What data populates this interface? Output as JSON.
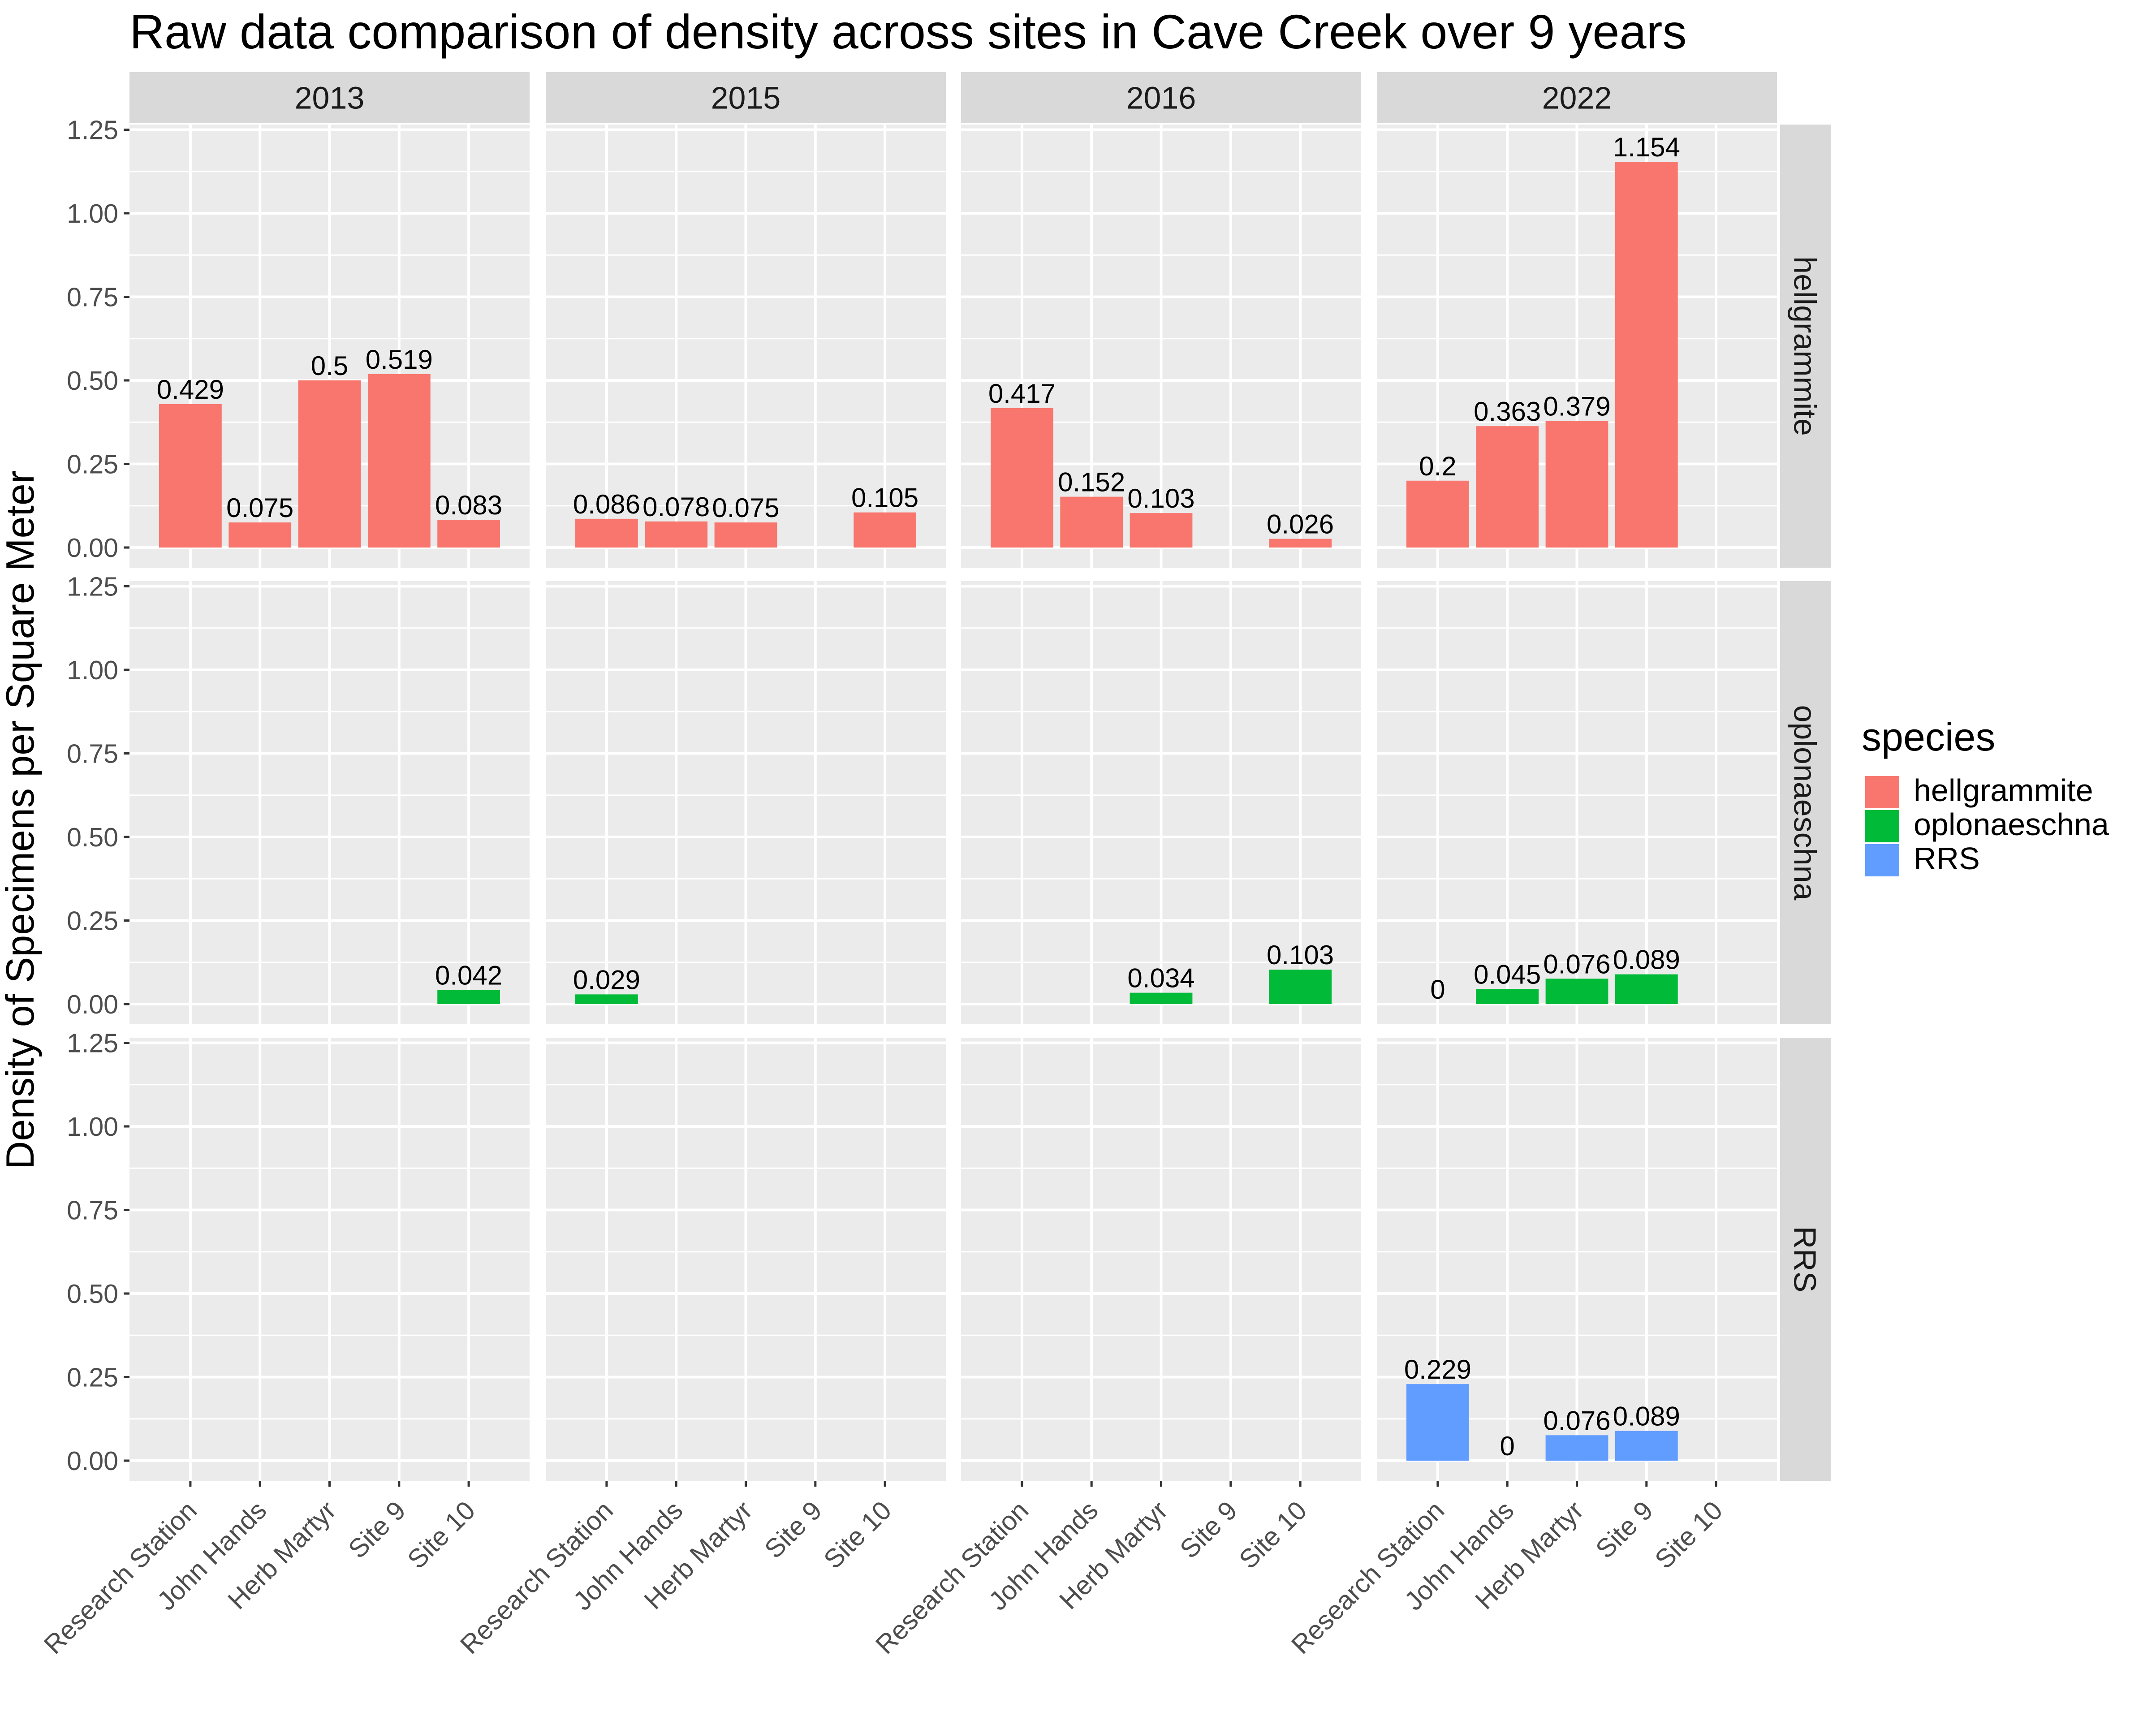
{
  "chart_data": {
    "type": "bar",
    "title": "Raw data comparison of density across sites in Cave Creek over 9 years",
    "xlabel": "",
    "ylabel": "Density of Specimens per Square Meter",
    "ylim": [
      -0.05,
      1.25
    ],
    "yticks": [
      0,
      0.25,
      0.5,
      0.75,
      1,
      1.25
    ],
    "ytick_labels": [
      "0.00",
      "0.25",
      "0.50",
      "0.75",
      "1.00",
      "1.25"
    ],
    "grid": true,
    "categories": [
      "Research Station",
      "John Hands",
      "Herb Martyr",
      "Site 9",
      "Site 10"
    ],
    "facet_columns": [
      "2013",
      "2015",
      "2016",
      "2022"
    ],
    "facet_rows": [
      "hellgrammite",
      "oplonaeschna",
      "RRS"
    ],
    "legend": {
      "title": "species",
      "position": "right",
      "entries": [
        "hellgrammite",
        "oplonaeschna",
        "RRS"
      ]
    },
    "colors": {
      "hellgrammite": "#F8766D",
      "oplonaeschna": "#00BA38",
      "RRS": "#619CFF",
      "panel_bg": "#EBEBEB",
      "strip_bg": "#D9D9D9",
      "grid": "#FFFFFF"
    },
    "series": [
      {
        "name": "hellgrammite",
        "data": [
          {
            "year": "2013",
            "site": "Research Station",
            "value": 0.429,
            "label": "0.429"
          },
          {
            "year": "2013",
            "site": "John Hands",
            "value": 0.075,
            "label": "0.075"
          },
          {
            "year": "2013",
            "site": "Herb Martyr",
            "value": 0.5,
            "label": "0.5"
          },
          {
            "year": "2013",
            "site": "Site 9",
            "value": 0.519,
            "label": "0.519"
          },
          {
            "year": "2013",
            "site": "Site 10",
            "value": 0.083,
            "label": "0.083"
          },
          {
            "year": "2015",
            "site": "Research Station",
            "value": 0.086,
            "label": "0.086"
          },
          {
            "year": "2015",
            "site": "John Hands",
            "value": 0.078,
            "label": "0.078"
          },
          {
            "year": "2015",
            "site": "Herb Martyr",
            "value": 0.075,
            "label": "0.075"
          },
          {
            "year": "2015",
            "site": "Site 10",
            "value": 0.105,
            "label": "0.105"
          },
          {
            "year": "2016",
            "site": "Research Station",
            "value": 0.417,
            "label": "0.417"
          },
          {
            "year": "2016",
            "site": "John Hands",
            "value": 0.152,
            "label": "0.152"
          },
          {
            "year": "2016",
            "site": "Herb Martyr",
            "value": 0.103,
            "label": "0.103"
          },
          {
            "year": "2016",
            "site": "Site 10",
            "value": 0.026,
            "label": "0.026"
          },
          {
            "year": "2022",
            "site": "Research Station",
            "value": 0.2,
            "label": "0.2"
          },
          {
            "year": "2022",
            "site": "John Hands",
            "value": 0.363,
            "label": "0.363"
          },
          {
            "year": "2022",
            "site": "Herb Martyr",
            "value": 0.379,
            "label": "0.379"
          },
          {
            "year": "2022",
            "site": "Site 9",
            "value": 1.154,
            "label": "1.154"
          }
        ]
      },
      {
        "name": "oplonaeschna",
        "data": [
          {
            "year": "2013",
            "site": "Site 10",
            "value": 0.042,
            "label": "0.042"
          },
          {
            "year": "2015",
            "site": "Research Station",
            "value": 0.029,
            "label": "0.029"
          },
          {
            "year": "2016",
            "site": "Herb Martyr",
            "value": 0.034,
            "label": "0.034"
          },
          {
            "year": "2016",
            "site": "Site 10",
            "value": 0.103,
            "label": "0.103"
          },
          {
            "year": "2022",
            "site": "Research Station",
            "value": 0,
            "label": "0"
          },
          {
            "year": "2022",
            "site": "John Hands",
            "value": 0.045,
            "label": "0.045"
          },
          {
            "year": "2022",
            "site": "Herb Martyr",
            "value": 0.076,
            "label": "0.076"
          },
          {
            "year": "2022",
            "site": "Site 9",
            "value": 0.089,
            "label": "0.089"
          }
        ]
      },
      {
        "name": "RRS",
        "data": [
          {
            "year": "2022",
            "site": "Research Station",
            "value": 0.229,
            "label": "0.229"
          },
          {
            "year": "2022",
            "site": "John Hands",
            "value": 0,
            "label": "0"
          },
          {
            "year": "2022",
            "site": "Herb Martyr",
            "value": 0.076,
            "label": "0.076"
          },
          {
            "year": "2022",
            "site": "Site 9",
            "value": 0.089,
            "label": "0.089"
          }
        ]
      }
    ]
  }
}
